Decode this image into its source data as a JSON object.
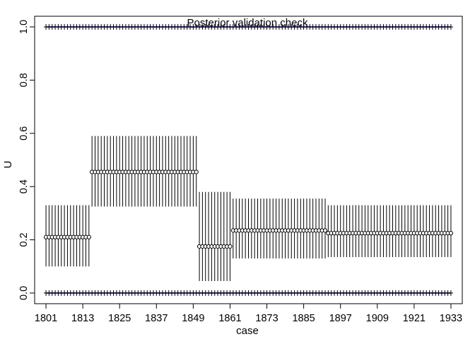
{
  "chart_data": {
    "type": "scatter",
    "title": "Posterior validation check",
    "xlabel": "case",
    "ylabel": "U",
    "xlim": [
      1797.3,
      1936.7
    ],
    "ylim": [
      -0.04,
      1.04
    ],
    "x_ticks": [
      1801,
      1813,
      1825,
      1837,
      1849,
      1861,
      1873,
      1885,
      1897,
      1909,
      1921,
      1933
    ],
    "y_ticks": [
      "0.0",
      "0.2",
      "0.4",
      "0.6",
      "0.8",
      "1.0"
    ],
    "y_tick_values": [
      0,
      0.2,
      0.4,
      0.6,
      0.8,
      1.0
    ],
    "grid": false,
    "segments": [
      {
        "x_start": 1801,
        "x_end": 1815,
        "mean": 0.21,
        "lower": 0.1,
        "upper": 0.33
      },
      {
        "x_start": 1816,
        "x_end": 1850,
        "mean": 0.455,
        "lower": 0.325,
        "upper": 0.59
      },
      {
        "x_start": 1851,
        "x_end": 1861,
        "mean": 0.175,
        "lower": 0.045,
        "upper": 0.38
      },
      {
        "x_start": 1862,
        "x_end": 1892,
        "mean": 0.235,
        "lower": 0.13,
        "upper": 0.355
      },
      {
        "x_start": 1893,
        "x_end": 1933,
        "mean": 0.225,
        "lower": 0.135,
        "upper": 0.33
      }
    ],
    "observed_points": {
      "y_values": [
        0,
        1
      ],
      "x_range": [
        1801,
        1933
      ],
      "marker": "plus",
      "highlight_color": "#3f3fbf"
    },
    "colors": {
      "main": "#000000",
      "highlight": "#3f3fbf"
    }
  }
}
